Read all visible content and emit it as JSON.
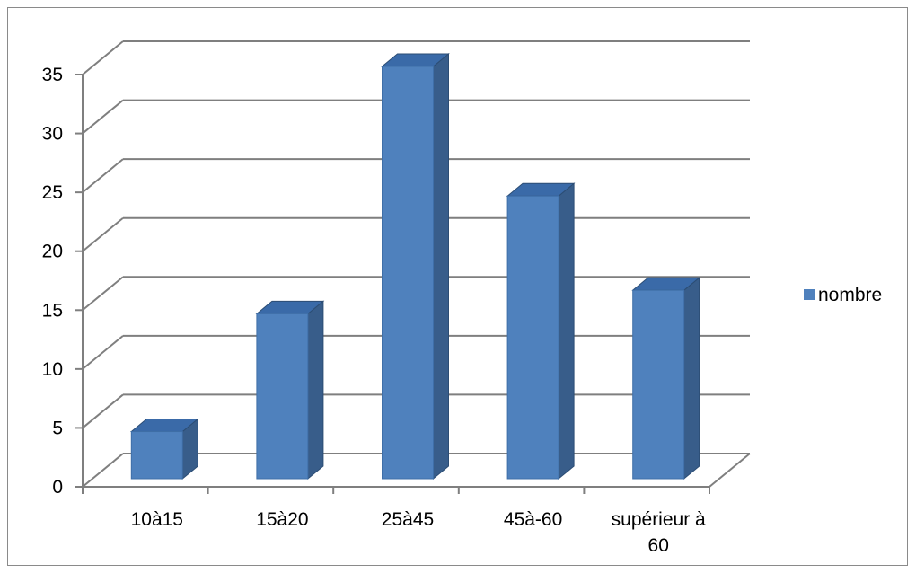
{
  "chart_data": {
    "type": "bar",
    "style": "3d-clustered-column",
    "categories": [
      "10à15",
      "15à20",
      "25à45",
      "45à-60",
      "supérieur à 60"
    ],
    "category_lines": [
      [
        "10à15"
      ],
      [
        "15à20"
      ],
      [
        "25à45"
      ],
      [
        "45à-60"
      ],
      [
        "supérieur à",
        "60"
      ]
    ],
    "series": [
      {
        "name": "nombre",
        "values": [
          4,
          14,
          35,
          24,
          16
        ],
        "color": "#4f81bd"
      }
    ],
    "y_ticks": [
      "0",
      "5",
      "10",
      "15",
      "20",
      "25",
      "30",
      "35"
    ],
    "ylim": [
      0,
      35
    ],
    "grid": true,
    "legend_position": "right",
    "colors": {
      "bar_front": "#4f81bd",
      "bar_side": "#385d8a",
      "bar_top": "#3a6aa8",
      "grid": "#7f7f7f"
    }
  }
}
